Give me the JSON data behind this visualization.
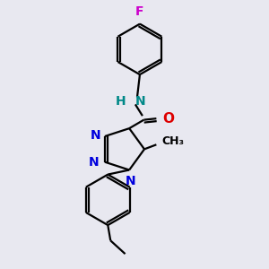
{
  "bg_color": "#e8e8f0",
  "bond_color": "#000000",
  "n_color": "#0000dd",
  "o_color": "#dd0000",
  "f_color": "#cc00cc",
  "nh_color": "#008888",
  "bond_lw": 1.6,
  "figsize": [
    3.0,
    3.0
  ],
  "dpi": 100,
  "xlim": [
    0,
    10
  ],
  "ylim": [
    0,
    10
  ]
}
